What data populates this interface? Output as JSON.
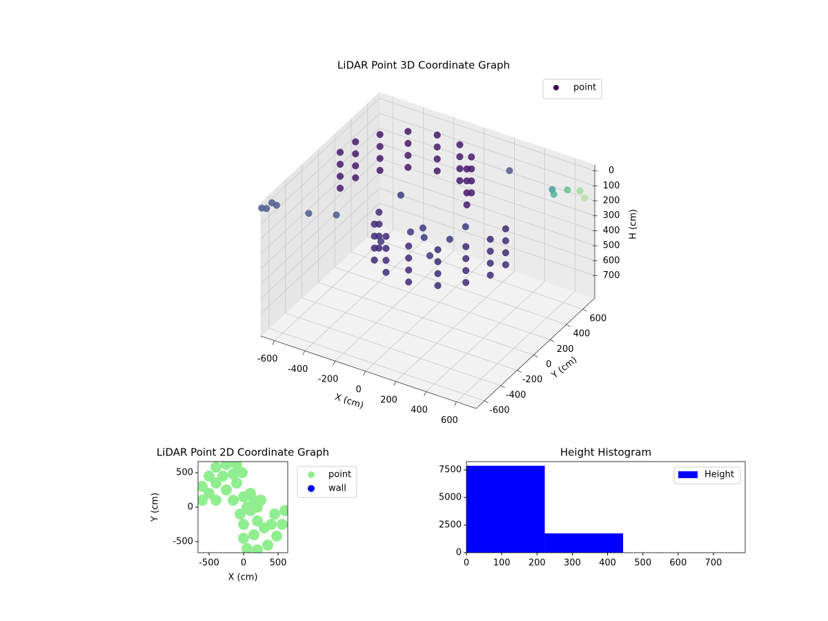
{
  "chart_data": [
    {
      "type": "scatter3d",
      "title": "LiDAR Point 3D Coordinate Graph",
      "xlabel": "X (cm)",
      "ylabel": "Y (cm)",
      "zlabel": "H (cm)",
      "xlim": [
        -690,
        730
      ],
      "ylim": [
        -700,
        745
      ],
      "zlim": [
        -40,
        850
      ],
      "z_inverted": true,
      "xticks": [
        -600,
        -400,
        -200,
        0,
        200,
        400,
        600
      ],
      "yticks": [
        -600,
        -400,
        -200,
        0,
        200,
        400,
        600
      ],
      "zticks": [
        0,
        100,
        200,
        300,
        400,
        500,
        600,
        700
      ],
      "grid": true,
      "legend": "upper right",
      "series": [
        {
          "name": "point",
          "color": "#440154",
          "x": [
            -600,
            -600,
            -600,
            -600,
            -580,
            -580,
            -580,
            -580,
            -500,
            -500,
            -500,
            -500,
            -380,
            -380,
            -380,
            -380,
            -220,
            -220,
            -220,
            -220,
            -60,
            -60,
            -60,
            -60,
            60,
            60,
            60,
            60,
            100,
            100,
            100,
            100,
            -100,
            -100,
            -100,
            -100,
            -60,
            -60,
            -60,
            -60,
            60,
            60,
            60,
            60,
            220,
            220,
            220,
            220,
            380,
            380,
            380,
            380,
            500,
            500,
            500,
            500,
            580,
            580,
            580,
            580,
            600,
            600,
            600,
            600,
            -200,
            0,
            100,
            -100,
            150,
            0,
            -250,
            200,
            -690,
            -680,
            -660,
            -640,
            -450,
            -300,
            300,
            590,
            650,
            700,
            560,
            720
          ],
          "y": [
            100,
            100,
            100,
            100,
            250,
            250,
            250,
            250,
            400,
            400,
            400,
            400,
            520,
            520,
            520,
            520,
            580,
            580,
            580,
            580,
            560,
            560,
            560,
            560,
            480,
            480,
            480,
            480,
            350,
            350,
            350,
            350,
            -350,
            -350,
            -350,
            -350,
            -480,
            -480,
            -480,
            -480,
            -560,
            -560,
            -560,
            -560,
            -580,
            -580,
            -580,
            -580,
            -520,
            -520,
            -520,
            -520,
            -400,
            -400,
            -400,
            -400,
            -250,
            -250,
            -250,
            -250,
            -100,
            -100,
            -100,
            -100,
            100,
            0,
            -100,
            200,
            50,
            -150,
            -50,
            150,
            -690,
            -650,
            -620,
            -600,
            -560,
            -500,
            500,
            485,
            560,
            620,
            560,
            640
          ],
          "z": [
            0,
            80,
            160,
            240,
            0,
            80,
            160,
            240,
            0,
            80,
            160,
            240,
            0,
            80,
            160,
            240,
            0,
            80,
            160,
            240,
            0,
            80,
            160,
            240,
            0,
            80,
            160,
            240,
            0,
            80,
            160,
            240,
            0,
            80,
            160,
            240,
            0,
            80,
            160,
            240,
            0,
            80,
            160,
            240,
            0,
            80,
            160,
            240,
            0,
            80,
            160,
            240,
            0,
            80,
            160,
            240,
            0,
            80,
            160,
            240,
            0,
            80,
            160,
            240,
            150,
            250,
            350,
            450,
            300,
            200,
            400,
            250,
            0,
            20,
            -10,
            10,
            20,
            10,
            20,
            40,
            60,
            80,
            120,
            130
          ],
          "colors": [
            "#461a6c",
            "#461a6c",
            "#461a6c",
            "#461a6c",
            "#461a6c",
            "#461a6c",
            "#461a6c",
            "#461a6c",
            "#461a6c",
            "#461a6c",
            "#461a6c",
            "#461a6c",
            "#461a6c",
            "#461a6c",
            "#461a6c",
            "#461a6c",
            "#461a6c",
            "#461a6c",
            "#461a6c",
            "#461a6c",
            "#461a6c",
            "#461a6c",
            "#461a6c",
            "#461a6c",
            "#461a6c",
            "#461a6c",
            "#461a6c",
            "#461a6c",
            "#461a6c",
            "#461a6c",
            "#461a6c",
            "#461a6c",
            "#402a76",
            "#402a76",
            "#402a76",
            "#402a76",
            "#402a76",
            "#402a76",
            "#402a76",
            "#402a76",
            "#402a76",
            "#402a76",
            "#402a76",
            "#402a76",
            "#402a76",
            "#402a76",
            "#402a76",
            "#402a76",
            "#402a76",
            "#402a76",
            "#402a76",
            "#402a76",
            "#402a76",
            "#402a76",
            "#402a76",
            "#402a76",
            "#402a76",
            "#402a76",
            "#402a76",
            "#402a76",
            "#402a76",
            "#402a76",
            "#402a76",
            "#402a76",
            "#3f3d80",
            "#3f3d80",
            "#3f3d80",
            "#3f3d80",
            "#3f3d80",
            "#3f3d80",
            "#3f3d80",
            "#3f3d80",
            "#4f5b8c",
            "#4f5b8c",
            "#4f5b8c",
            "#4f5b8c",
            "#4f5b8c",
            "#4f5b8c",
            "#555a8c",
            "#45a399",
            "#67c397",
            "#a0da9e",
            "#58b39a",
            "#b8e2a7"
          ]
        }
      ]
    },
    {
      "type": "scatter",
      "title": "LiDAR Point 2D Coordinate Graph",
      "xlabel": "X (cm)",
      "ylabel": "Y (cm)",
      "xlim": [
        -660,
        640
      ],
      "ylim": [
        -660,
        660
      ],
      "xticks": [
        -500,
        0,
        500
      ],
      "yticks": [
        -500,
        0,
        500
      ],
      "legend": "outside right",
      "series": [
        {
          "name": "point",
          "color": "#90ee90",
          "x": [
            -600,
            -600,
            -500,
            -400,
            -250,
            -100,
            -500,
            -400,
            -300,
            -150,
            -400,
            -250,
            -100,
            -20,
            -150,
            0,
            100,
            150,
            200,
            50,
            -50,
            100,
            250,
            0,
            0,
            50,
            200,
            350,
            480,
            560,
            600,
            450,
            300,
            150,
            400,
            200
          ],
          "y": [
            100,
            300,
            450,
            580,
            620,
            620,
            200,
            350,
            450,
            480,
            100,
            250,
            350,
            500,
            100,
            150,
            200,
            100,
            0,
            0,
            -100,
            -50,
            100,
            -250,
            -450,
            -600,
            -620,
            -550,
            -420,
            -250,
            -50,
            -100,
            -300,
            -400,
            -250,
            -200
          ]
        },
        {
          "name": "wall",
          "color": "#0000ff",
          "x": [],
          "y": []
        }
      ]
    },
    {
      "type": "histogram",
      "title": "Height Histogram",
      "bins": [
        0,
        222,
        444,
        666
      ],
      "xlim": [
        0,
        790
      ],
      "ylim": [
        0,
        8250
      ],
      "xticks": [
        0,
        100,
        200,
        300,
        400,
        500,
        600,
        700
      ],
      "yticks": [
        0,
        2500,
        5000,
        7500
      ],
      "legend": "upper right",
      "series": [
        {
          "name": "Height",
          "color": "#0000ff",
          "values": [
            7875,
            1750,
            0
          ]
        }
      ]
    }
  ]
}
